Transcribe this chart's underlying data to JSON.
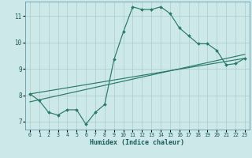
{
  "xlabel": "Humidex (Indice chaleur)",
  "bg_color": "#cce8e8",
  "grid_color": "#aacccc",
  "line_color": "#2a7a6a",
  "xlim": [
    -0.5,
    23.5
  ],
  "ylim": [
    6.7,
    11.55
  ],
  "xticks": [
    0,
    1,
    2,
    3,
    4,
    5,
    6,
    7,
    8,
    9,
    10,
    11,
    12,
    13,
    14,
    15,
    16,
    17,
    18,
    19,
    20,
    21,
    22,
    23
  ],
  "yticks": [
    7,
    8,
    9,
    10,
    11
  ],
  "curve1_x": [
    0,
    1,
    2,
    3,
    4,
    5,
    6,
    7,
    8,
    9,
    10,
    11,
    12,
    13,
    14,
    15,
    16,
    17,
    18,
    19,
    20,
    21,
    22,
    23
  ],
  "curve1_y": [
    8.05,
    7.8,
    7.35,
    7.25,
    7.45,
    7.45,
    6.9,
    7.35,
    7.65,
    9.35,
    10.4,
    11.35,
    11.25,
    11.25,
    11.35,
    11.1,
    10.55,
    10.25,
    9.95,
    9.95,
    9.7,
    9.15,
    9.2,
    9.4
  ],
  "curve2_x": [
    0,
    23
  ],
  "curve2_y": [
    8.05,
    9.4
  ],
  "curve3_x": [
    0,
    23
  ],
  "curve3_y": [
    7.75,
    9.55
  ]
}
